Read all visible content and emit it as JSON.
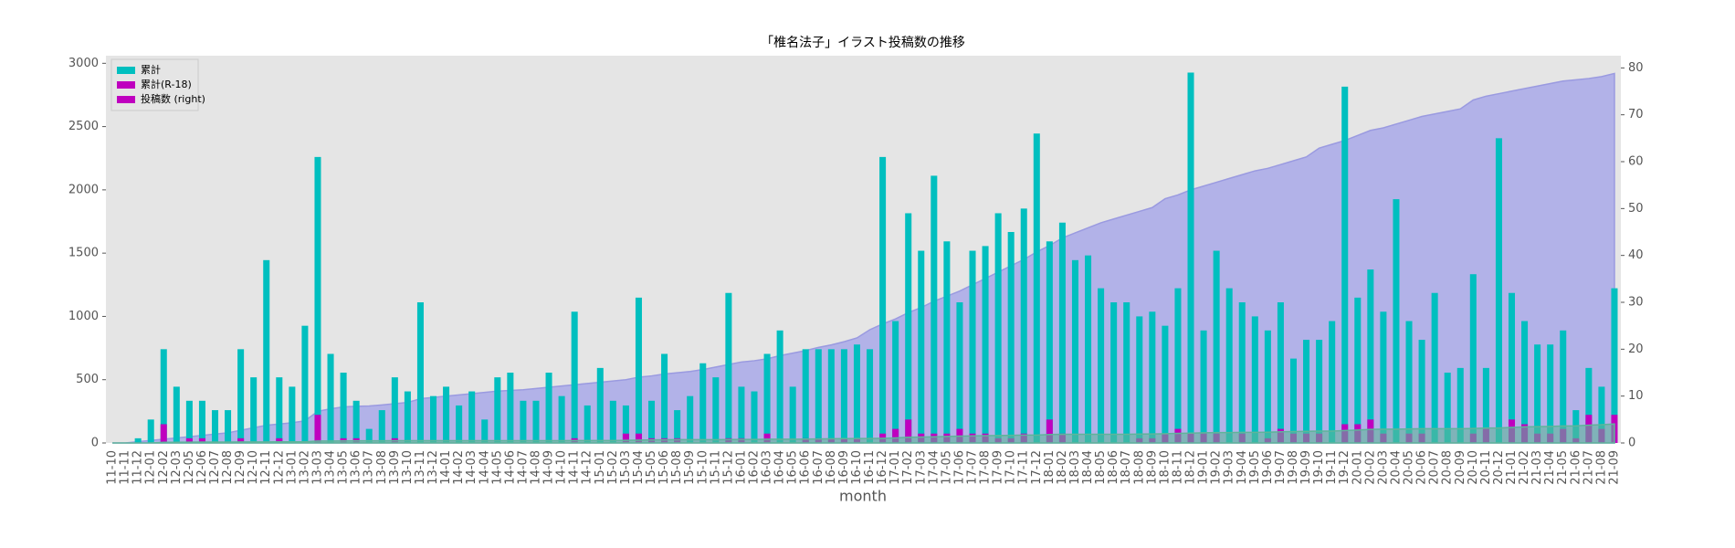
{
  "chart_data": {
    "type": "bar",
    "title": "「椎名法子」イラスト投稿数の推移",
    "xlabel": "month",
    "categories": [
      "11-10",
      "11-11",
      "11-12",
      "12-01",
      "12-02",
      "12-03",
      "12-05",
      "12-06",
      "12-07",
      "12-08",
      "12-09",
      "12-10",
      "12-11",
      "12-12",
      "13-01",
      "13-02",
      "13-03",
      "13-04",
      "13-05",
      "13-06",
      "13-07",
      "13-08",
      "13-09",
      "13-10",
      "13-11",
      "13-12",
      "14-01",
      "14-02",
      "14-03",
      "14-04",
      "14-05",
      "14-06",
      "14-07",
      "14-08",
      "14-09",
      "14-10",
      "14-11",
      "14-12",
      "15-01",
      "15-02",
      "15-03",
      "15-04",
      "15-05",
      "15-06",
      "15-08",
      "15-09",
      "15-10",
      "15-11",
      "15-12",
      "16-01",
      "16-02",
      "16-03",
      "16-04",
      "16-05",
      "16-06",
      "16-07",
      "16-08",
      "16-09",
      "16-10",
      "16-11",
      "16-12",
      "17-01",
      "17-02",
      "17-03",
      "17-04",
      "17-05",
      "17-06",
      "17-07",
      "17-08",
      "17-09",
      "17-10",
      "17-11",
      "17-12",
      "18-01",
      "18-02",
      "18-03",
      "18-04",
      "18-05",
      "18-06",
      "18-07",
      "18-08",
      "18-09",
      "18-10",
      "18-11",
      "18-12",
      "19-01",
      "19-02",
      "19-03",
      "19-04",
      "19-05",
      "19-06",
      "19-07",
      "19-08",
      "19-09",
      "19-10",
      "19-11",
      "19-12",
      "20-01",
      "20-02",
      "20-03",
      "20-04",
      "20-05",
      "20-06",
      "20-07",
      "20-08",
      "20-09",
      "20-10",
      "20-11",
      "20-12",
      "21-01",
      "21-02",
      "21-03",
      "21-04",
      "21-05",
      "21-06",
      "21-07",
      "21-08",
      "21-09"
    ],
    "series": [
      {
        "name": "累計",
        "color": "#00bfbf",
        "type": "bar",
        "axis": "y2",
        "values": [
          0,
          0,
          1,
          5,
          20,
          12,
          9,
          9,
          7,
          7,
          20,
          14,
          39,
          14,
          12,
          25,
          61,
          19,
          15,
          9,
          3,
          7,
          14,
          11,
          30,
          10,
          12,
          8,
          11,
          5,
          14,
          15,
          9,
          9,
          15,
          10,
          28,
          8,
          16,
          9,
          8,
          31,
          9,
          19,
          7,
          10,
          17,
          14,
          32,
          12,
          11,
          19,
          24,
          12,
          20,
          20,
          20,
          20,
          21,
          20,
          61,
          26,
          49,
          41,
          57,
          43,
          30,
          41,
          42,
          49,
          45,
          50,
          66,
          43,
          47,
          39,
          40,
          33,
          30,
          30,
          27,
          28,
          25,
          33,
          79,
          24,
          41,
          33,
          30,
          27,
          24,
          30,
          18,
          22,
          22,
          26,
          76,
          31,
          37,
          28,
          52,
          26,
          22,
          32,
          15,
          16,
          36,
          16,
          65,
          32,
          26,
          21,
          21,
          24,
          7,
          16,
          12,
          33
        ]
      },
      {
        "name": "累計(R-18)",
        "color": "#bf00bf",
        "type": "bar",
        "axis": "y2",
        "values": [
          0,
          0,
          0,
          0,
          4,
          0,
          1,
          1,
          0,
          0,
          1,
          0,
          0,
          1,
          0,
          0,
          6,
          0,
          1,
          1,
          0,
          0,
          1,
          0,
          0,
          0,
          0,
          0,
          0,
          0,
          0,
          0,
          0,
          0,
          0,
          0,
          1,
          0,
          0,
          0,
          2,
          2,
          1,
          1,
          1,
          0,
          0,
          0,
          1,
          1,
          0,
          2,
          0,
          0,
          1,
          1,
          1,
          1,
          1,
          0,
          2,
          3,
          5,
          2,
          2,
          2,
          3,
          2,
          2,
          1,
          1,
          2,
          0,
          5,
          2,
          0,
          0,
          0,
          0,
          0,
          1,
          1,
          2,
          3,
          2,
          2,
          2,
          0,
          2,
          0,
          1,
          3,
          2,
          2,
          2,
          0,
          4,
          4,
          5,
          2,
          0,
          2,
          2,
          0,
          0,
          0,
          2,
          3,
          0,
          5,
          4,
          2,
          2,
          3,
          1,
          6,
          3,
          6
        ]
      },
      {
        "name": "投稿数 (right)",
        "color": "#bf00bf",
        "fill": "#b2b2e8",
        "type": "area",
        "values": [
          0,
          0,
          10,
          20,
          30,
          40,
          50,
          60,
          70,
          80,
          100,
          120,
          140,
          150,
          160,
          175,
          250,
          270,
          285,
          290,
          292,
          300,
          310,
          320,
          350,
          360,
          370,
          380,
          390,
          400,
          410,
          415,
          420,
          430,
          440,
          450,
          460,
          470,
          480,
          490,
          500,
          520,
          530,
          545,
          555,
          565,
          580,
          600,
          620,
          640,
          650,
          665,
          690,
          710,
          730,
          755,
          775,
          800,
          830,
          895,
          940,
          980,
          1030,
          1070,
          1120,
          1160,
          1200,
          1250,
          1300,
          1350,
          1400,
          1450,
          1510,
          1560,
          1620,
          1660,
          1700,
          1740,
          1770,
          1800,
          1830,
          1860,
          1930,
          1960,
          2000,
          2030,
          2060,
          2090,
          2120,
          2150,
          2170,
          2200,
          2230,
          2260,
          2330,
          2360,
          2390,
          2430,
          2470,
          2490,
          2520,
          2550,
          2580,
          2600,
          2620,
          2640,
          2710,
          2740,
          2760,
          2780,
          2800,
          2820,
          2840,
          2860,
          2870,
          2880,
          2895,
          2920
        ]
      },
      {
        "color": "#5fb49a",
        "type": "area",
        "values": [
          0,
          0,
          0,
          0,
          5,
          5,
          6,
          7,
          7,
          7,
          8,
          8,
          8,
          9,
          9,
          9,
          15,
          15,
          16,
          17,
          17,
          17,
          18,
          18,
          18,
          18,
          18,
          18,
          18,
          18,
          18,
          18,
          18,
          18,
          18,
          18,
          19,
          19,
          19,
          19,
          21,
          23,
          24,
          25,
          26,
          26,
          26,
          26,
          27,
          28,
          28,
          30,
          30,
          30,
          31,
          32,
          33,
          34,
          35,
          35,
          37,
          40,
          45,
          47,
          49,
          51,
          54,
          56,
          58,
          59,
          60,
          62,
          62,
          67,
          69,
          69,
          69,
          69,
          69,
          69,
          70,
          71,
          73,
          76,
          78,
          80,
          82,
          82,
          84,
          84,
          85,
          88,
          90,
          92,
          94,
          94,
          98,
          102,
          107,
          109,
          109,
          111,
          113,
          113,
          113,
          113,
          115,
          118,
          118,
          123,
          127,
          129,
          131,
          134,
          135,
          141,
          144,
          150
        ]
      }
    ],
    "ylim": [
      0,
      3060
    ],
    "yticks": [
      0,
      500,
      1000,
      1500,
      2000,
      2500,
      3000
    ],
    "y2lim": [
      0,
      82.6
    ],
    "y2ticks": [
      0,
      10,
      20,
      30,
      40,
      50,
      60,
      70,
      80
    ],
    "grid": false,
    "legend": "upper left"
  }
}
